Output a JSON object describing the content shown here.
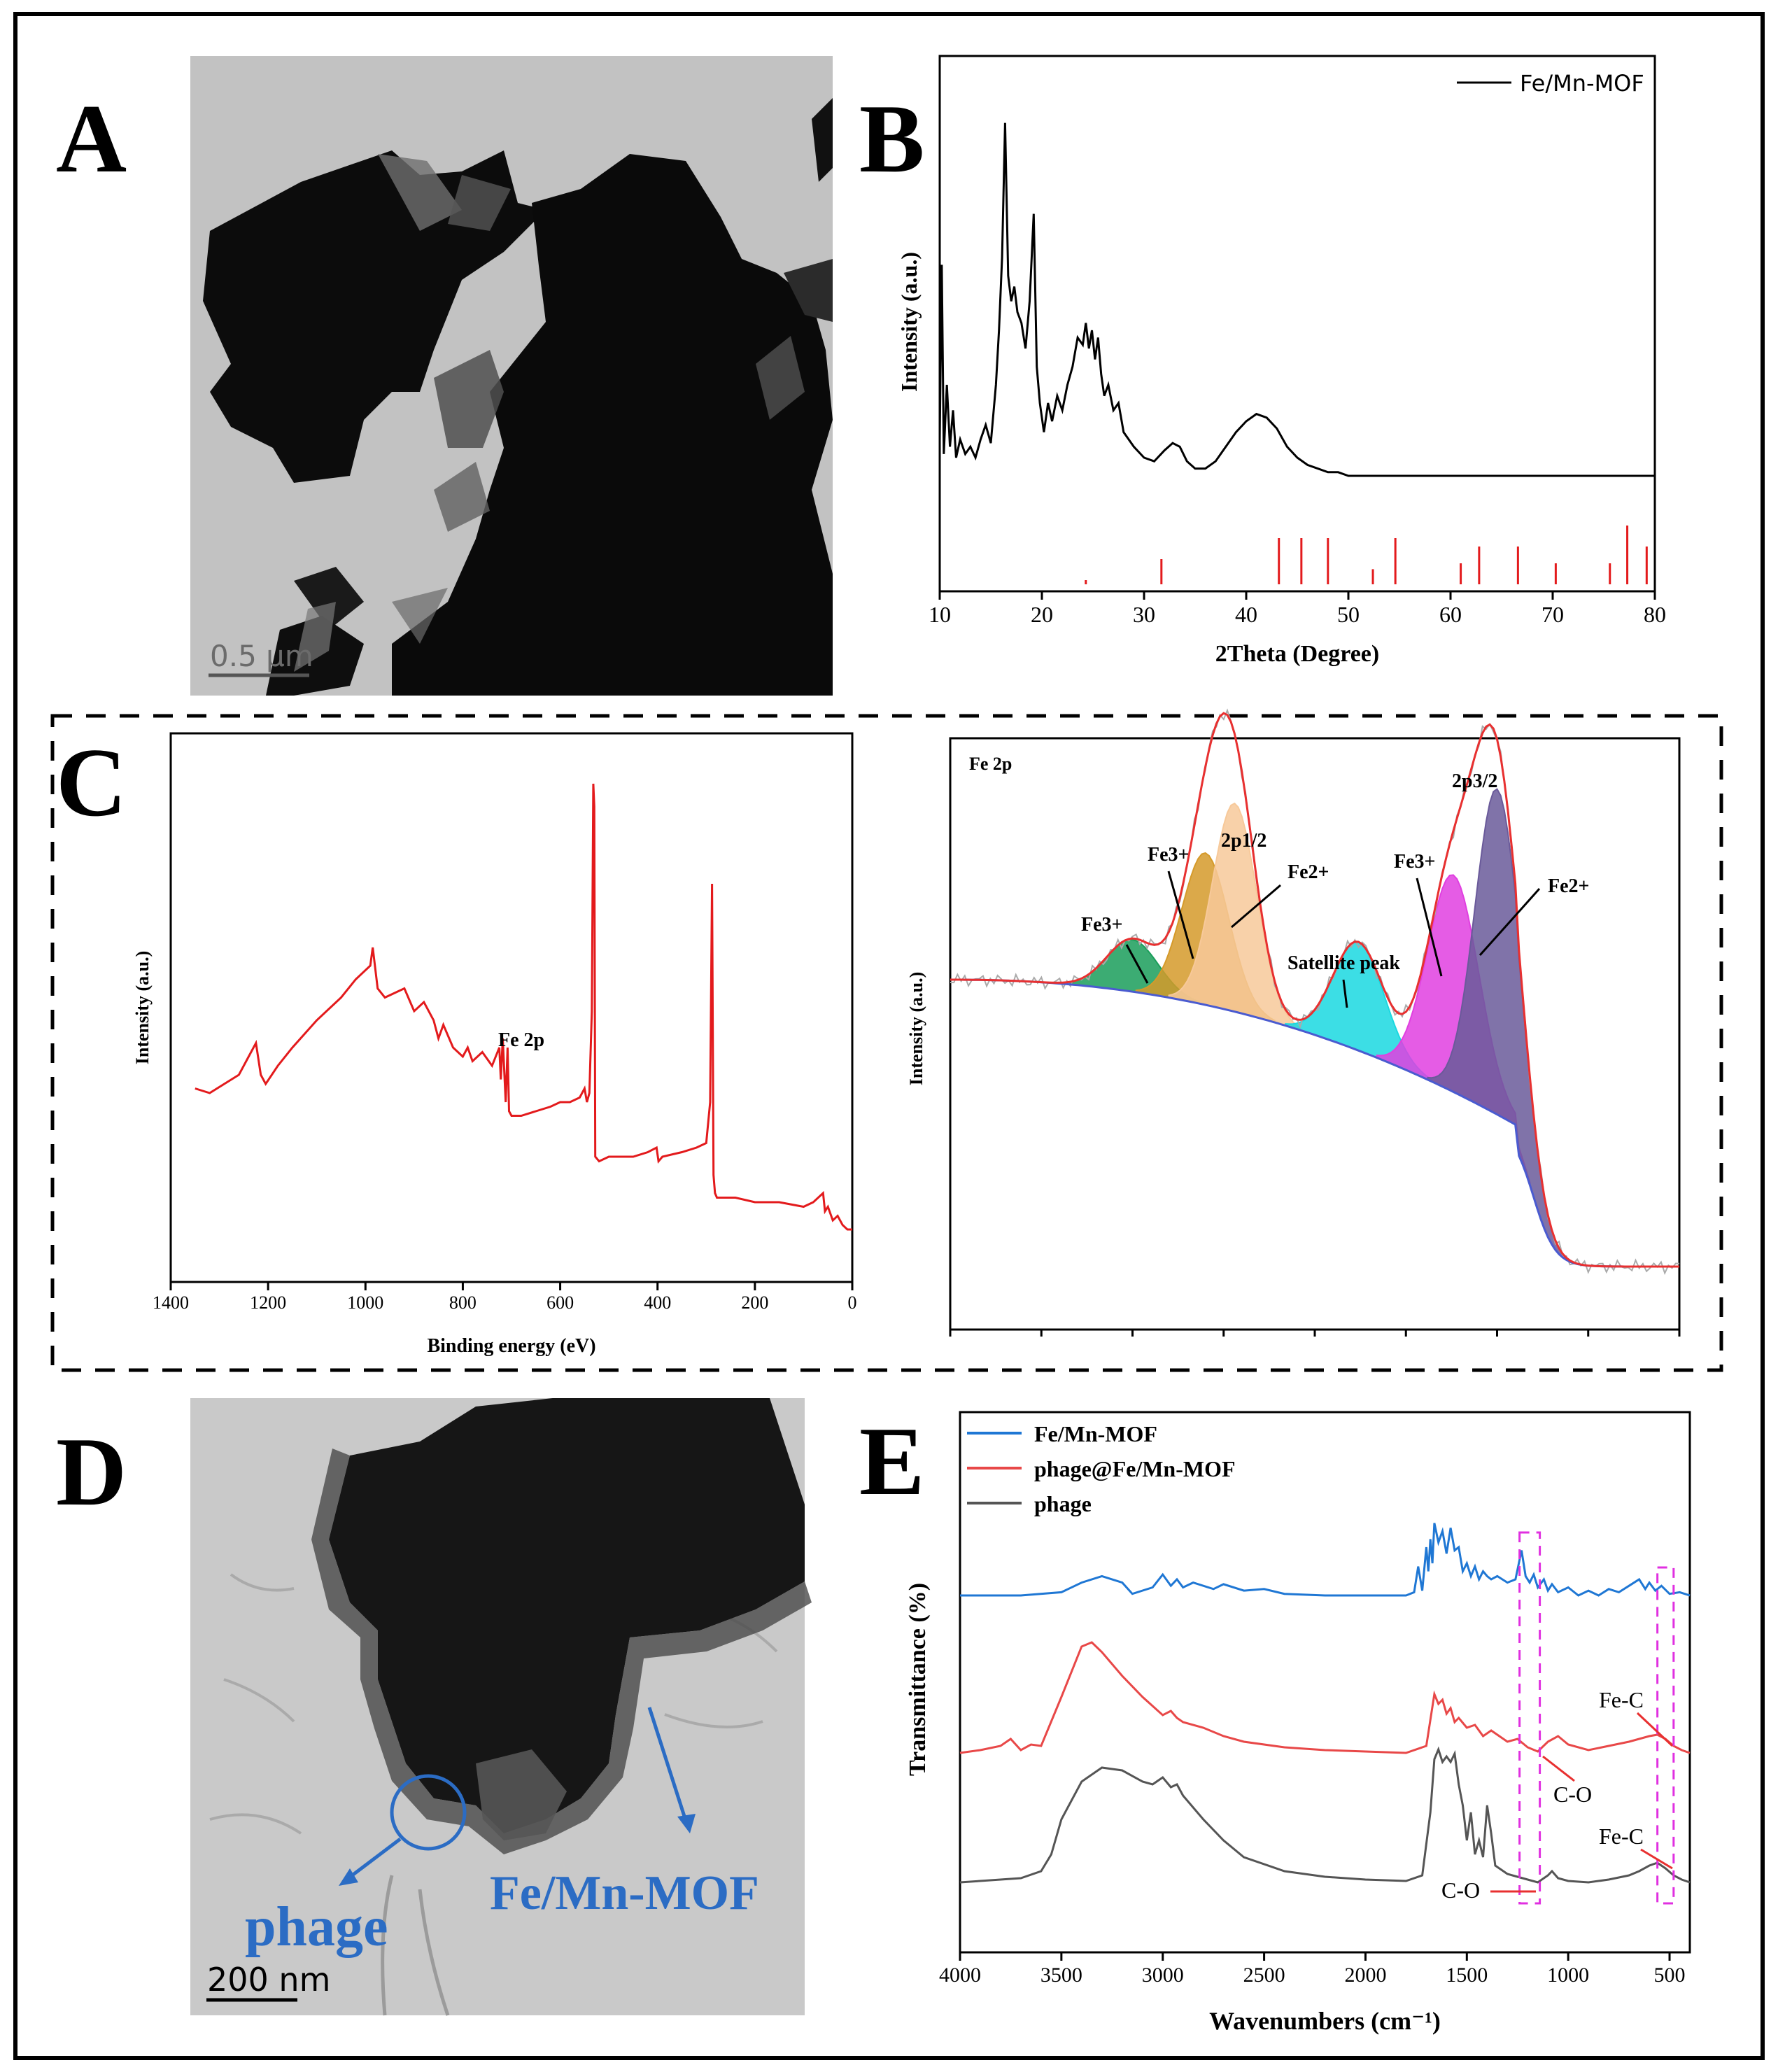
{
  "panels": {
    "a": {
      "letter": "A",
      "scale_bar": "0.5 μm"
    },
    "b": {
      "letter": "B"
    },
    "c": {
      "letter": "C"
    },
    "d": {
      "letter": "D",
      "scale_bar": "200 nm",
      "label_phage": "phage",
      "label_mof": "Fe/Mn-MOF"
    },
    "e": {
      "letter": "E"
    }
  },
  "chart_data": [
    {
      "id": "B",
      "type": "line",
      "title": "",
      "xlabel": "2Theta (Degree)",
      "ylabel": "Intensity (a.u.)",
      "xlim": [
        10,
        80
      ],
      "xticks": [
        "10",
        "20",
        "30",
        "40",
        "50",
        "60",
        "70",
        "80"
      ],
      "legend": "Fe/Mn-MOF",
      "series": [
        {
          "name": "Fe/Mn-MOF",
          "color": "#000000",
          "x": [
            10,
            10.2,
            10.4,
            10.7,
            11,
            11.3,
            11.6,
            12,
            12.5,
            13,
            13.5,
            14,
            14.5,
            15,
            15.5,
            15.8,
            16.1,
            16.4,
            16.7,
            17,
            17.3,
            17.6,
            18,
            18.4,
            18.8,
            19.2,
            19.5,
            19.8,
            20.2,
            20.6,
            21,
            21.5,
            22,
            22.5,
            23,
            23.5,
            24,
            24.3,
            24.6,
            24.9,
            25.2,
            25.5,
            25.8,
            26.1,
            26.5,
            27,
            27.5,
            28,
            28.5,
            29,
            30,
            31,
            32,
            32.8,
            33.5,
            34.2,
            35,
            36,
            37,
            38,
            39,
            40,
            41,
            42,
            43,
            44,
            45,
            46,
            47,
            48,
            49,
            50,
            52,
            55,
            58,
            62,
            66,
            70,
            74,
            78,
            80
          ],
          "y": [
            0.1,
            0.58,
            0.06,
            0.25,
            0.08,
            0.18,
            0.05,
            0.1,
            0.06,
            0.08,
            0.05,
            0.1,
            0.14,
            0.09,
            0.25,
            0.4,
            0.6,
            0.97,
            0.55,
            0.48,
            0.52,
            0.45,
            0.42,
            0.35,
            0.48,
            0.72,
            0.3,
            0.2,
            0.12,
            0.2,
            0.15,
            0.22,
            0.18,
            0.25,
            0.3,
            0.38,
            0.36,
            0.42,
            0.35,
            0.4,
            0.32,
            0.38,
            0.28,
            0.22,
            0.25,
            0.18,
            0.2,
            0.12,
            0.1,
            0.08,
            0.05,
            0.04,
            0.07,
            0.09,
            0.08,
            0.04,
            0.02,
            0.02,
            0.04,
            0.08,
            0.12,
            0.15,
            0.17,
            0.16,
            0.13,
            0.08,
            0.05,
            0.03,
            0.02,
            0.01,
            0.01,
            0.0,
            0.0,
            0.0,
            0.0,
            0.0,
            0.0,
            0.0,
            0.0,
            0.0,
            0.0
          ]
        }
      ],
      "reference_sticks": {
        "color": "#e31a1c",
        "x": [
          24.3,
          31.7,
          43.2,
          45.4,
          48.0,
          52.4,
          54.6,
          61.0,
          62.8,
          66.6,
          70.3,
          75.6,
          77.3,
          79.2
        ],
        "h": [
          0.05,
          0.3,
          0.55,
          0.55,
          0.55,
          0.18,
          0.55,
          0.25,
          0.45,
          0.45,
          0.25,
          0.25,
          0.7,
          0.45
        ]
      }
    },
    {
      "id": "C-survey",
      "type": "line",
      "xlabel": "Binding energy (eV)",
      "ylabel": "Intensity (a.u.)",
      "xlim": [
        1400,
        0
      ],
      "xticks": [
        "1400",
        "1200",
        "1000",
        "800",
        "600",
        "400",
        "200",
        "0"
      ],
      "annotations": [
        "Fe 2p"
      ],
      "series": [
        {
          "name": "survey",
          "color": "#e31a1c",
          "x": [
            1350,
            1320,
            1290,
            1260,
            1240,
            1225,
            1215,
            1205,
            1180,
            1150,
            1100,
            1050,
            1020,
            990,
            985,
            975,
            960,
            940,
            920,
            900,
            880,
            860,
            850,
            840,
            820,
            800,
            790,
            780,
            760,
            740,
            725,
            722,
            718,
            712,
            708,
            705,
            700,
            680,
            650,
            620,
            600,
            580,
            560,
            550,
            545,
            540,
            535,
            532,
            530,
            528,
            520,
            500,
            450,
            420,
            402,
            398,
            390,
            350,
            320,
            300,
            292,
            288,
            285,
            282,
            278,
            270,
            240,
            200,
            150,
            100,
            80,
            60,
            56,
            50,
            40,
            30,
            20,
            10,
            0
          ],
          "y": [
            0.33,
            0.32,
            0.34,
            0.36,
            0.4,
            0.43,
            0.36,
            0.34,
            0.38,
            0.42,
            0.48,
            0.53,
            0.57,
            0.6,
            0.64,
            0.55,
            0.53,
            0.54,
            0.55,
            0.5,
            0.52,
            0.48,
            0.44,
            0.47,
            0.42,
            0.4,
            0.42,
            0.39,
            0.41,
            0.38,
            0.42,
            0.35,
            0.44,
            0.3,
            0.42,
            0.28,
            0.27,
            0.27,
            0.28,
            0.29,
            0.3,
            0.3,
            0.31,
            0.33,
            0.3,
            0.32,
            0.5,
            1.0,
            0.95,
            0.18,
            0.17,
            0.18,
            0.18,
            0.19,
            0.2,
            0.17,
            0.18,
            0.19,
            0.2,
            0.21,
            0.3,
            0.78,
            0.14,
            0.1,
            0.09,
            0.09,
            0.09,
            0.08,
            0.08,
            0.07,
            0.08,
            0.1,
            0.06,
            0.07,
            0.04,
            0.05,
            0.03,
            0.02,
            0.02
          ]
        }
      ]
    },
    {
      "id": "C-Fe2p",
      "type": "area",
      "title": "Fe 2p",
      "ylabel": "Intensity (a.u.)",
      "annotations": [
        "Fe3+",
        "Fe3+",
        "2p1/2",
        "Fe2+",
        "Satellite peak",
        "Fe3+",
        "2p3/2",
        "Fe2+"
      ],
      "components": [
        {
          "name": "Fe3+ (2p1/2 satellite)",
          "color": "#1a9e5a",
          "center": 0.25,
          "height": 0.12,
          "width": 0.035
        },
        {
          "name": "Fe3+ (2p1/2)",
          "color": "#d59a2a",
          "center": 0.35,
          "height": 0.35,
          "width": 0.032
        },
        {
          "name": "Fe2+ (2p1/2)",
          "color": "#f7c99a",
          "center": 0.39,
          "height": 0.48,
          "width": 0.03
        },
        {
          "name": "Satellite peak",
          "color": "#1ad8e0",
          "center": 0.56,
          "height": 0.25,
          "width": 0.035
        },
        {
          "name": "Fe3+ (2p3/2)",
          "color": "#e03fe0",
          "center": 0.69,
          "height": 0.5,
          "width": 0.035
        },
        {
          "name": "Fe2+ (2p3/2)",
          "color": "#6a5a9a",
          "center": 0.75,
          "height": 0.75,
          "width": 0.03
        }
      ]
    },
    {
      "id": "E",
      "type": "line",
      "xlabel": "Wavenumbers (cm⁻¹)",
      "ylabel": "Transmittance (%)",
      "xlim": [
        4000,
        400
      ],
      "xticks": [
        "4000",
        "3500",
        "3000",
        "2500",
        "2000",
        "1500",
        "1000",
        "500"
      ],
      "legend": [
        "Fe/Mn-MOF",
        "phage@Fe/Mn-MOF",
        "phage"
      ],
      "annotations": [
        "Fe-C",
        "C-O",
        "Fe-C",
        "C-O"
      ],
      "series": [
        {
          "name": "Fe/Mn-MOF",
          "color": "#1f77d4",
          "x": [
            4000,
            3700,
            3500,
            3400,
            3300,
            3200,
            3150,
            3050,
            3000,
            2960,
            2930,
            2900,
            2850,
            2750,
            2700,
            2600,
            2500,
            2400,
            2200,
            2000,
            1800,
            1760,
            1740,
            1720,
            1700,
            1690,
            1680,
            1670,
            1660,
            1640,
            1620,
            1600,
            1580,
            1560,
            1540,
            1520,
            1500,
            1480,
            1460,
            1440,
            1420,
            1400,
            1380,
            1350,
            1300,
            1260,
            1230,
            1210,
            1190,
            1170,
            1150,
            1120,
            1100,
            1080,
            1050,
            1000,
            950,
            900,
            850,
            800,
            750,
            700,
            650,
            620,
            600,
            570,
            540,
            500,
            450,
            400
          ],
          "y": [
            0.0,
            0.0,
            0.02,
            0.08,
            0.12,
            0.08,
            0.01,
            0.05,
            0.13,
            0.06,
            0.1,
            0.05,
            0.08,
            0.04,
            0.07,
            0.03,
            0.04,
            0.01,
            0.0,
            0.0,
            0.0,
            0.02,
            0.18,
            0.03,
            0.3,
            0.15,
            0.35,
            0.2,
            0.45,
            0.33,
            0.4,
            0.26,
            0.42,
            0.28,
            0.3,
            0.15,
            0.2,
            0.12,
            0.18,
            0.1,
            0.15,
            0.12,
            0.1,
            0.12,
            0.08,
            0.1,
            0.28,
            0.12,
            0.08,
            0.13,
            0.05,
            0.1,
            0.03,
            0.07,
            0.02,
            0.05,
            0.0,
            0.03,
            0.0,
            0.04,
            0.02,
            0.06,
            0.1,
            0.04,
            0.08,
            0.03,
            0.06,
            0.01,
            0.02,
            0.0
          ]
        },
        {
          "name": "phage@Fe/Mn-MOF",
          "color": "#e84848",
          "x": [
            4000,
            3900,
            3800,
            3750,
            3700,
            3650,
            3600,
            3500,
            3400,
            3350,
            3300,
            3200,
            3100,
            3000,
            2960,
            2930,
            2900,
            2800,
            2700,
            2600,
            2400,
            2200,
            2000,
            1800,
            1700,
            1660,
            1640,
            1620,
            1600,
            1580,
            1560,
            1540,
            1500,
            1460,
            1420,
            1380,
            1300,
            1250,
            1200,
            1150,
            1100,
            1050,
            1000,
            900,
            800,
            700,
            600,
            560,
            520,
            480,
            440,
            400
          ],
          "y": [
            0.0,
            0.02,
            0.05,
            0.1,
            0.02,
            0.06,
            0.05,
            0.4,
            0.76,
            0.79,
            0.72,
            0.55,
            0.4,
            0.27,
            0.3,
            0.25,
            0.22,
            0.18,
            0.12,
            0.08,
            0.04,
            0.02,
            0.01,
            0.0,
            0.05,
            0.42,
            0.35,
            0.38,
            0.28,
            0.32,
            0.22,
            0.25,
            0.18,
            0.2,
            0.12,
            0.16,
            0.08,
            0.1,
            0.04,
            0.01,
            0.08,
            0.12,
            0.06,
            0.02,
            0.05,
            0.08,
            0.12,
            0.13,
            0.1,
            0.05,
            0.02,
            0.0
          ]
        },
        {
          "name": "phage",
          "color": "#555555",
          "x": [
            4000,
            3800,
            3700,
            3600,
            3550,
            3500,
            3400,
            3300,
            3200,
            3100,
            3050,
            3000,
            2960,
            2930,
            2900,
            2800,
            2700,
            2600,
            2400,
            2200,
            2000,
            1800,
            1720,
            1680,
            1660,
            1640,
            1620,
            1600,
            1580,
            1560,
            1540,
            1520,
            1500,
            1480,
            1460,
            1440,
            1420,
            1400,
            1380,
            1360,
            1300,
            1250,
            1200,
            1150,
            1100,
            1080,
            1050,
            1000,
            900,
            800,
            700,
            650,
            600,
            560,
            520,
            480,
            440,
            400
          ],
          "y": [
            0.0,
            0.02,
            0.03,
            0.08,
            0.2,
            0.45,
            0.72,
            0.82,
            0.8,
            0.72,
            0.7,
            0.75,
            0.68,
            0.7,
            0.62,
            0.45,
            0.3,
            0.18,
            0.08,
            0.04,
            0.02,
            0.01,
            0.05,
            0.5,
            0.88,
            0.95,
            0.86,
            0.9,
            0.86,
            0.92,
            0.7,
            0.55,
            0.3,
            0.5,
            0.2,
            0.3,
            0.18,
            0.55,
            0.35,
            0.12,
            0.06,
            0.04,
            0.02,
            0.0,
            0.05,
            0.08,
            0.03,
            0.01,
            0.0,
            0.02,
            0.05,
            0.08,
            0.12,
            0.14,
            0.1,
            0.05,
            0.02,
            0.0
          ]
        }
      ]
    }
  ]
}
